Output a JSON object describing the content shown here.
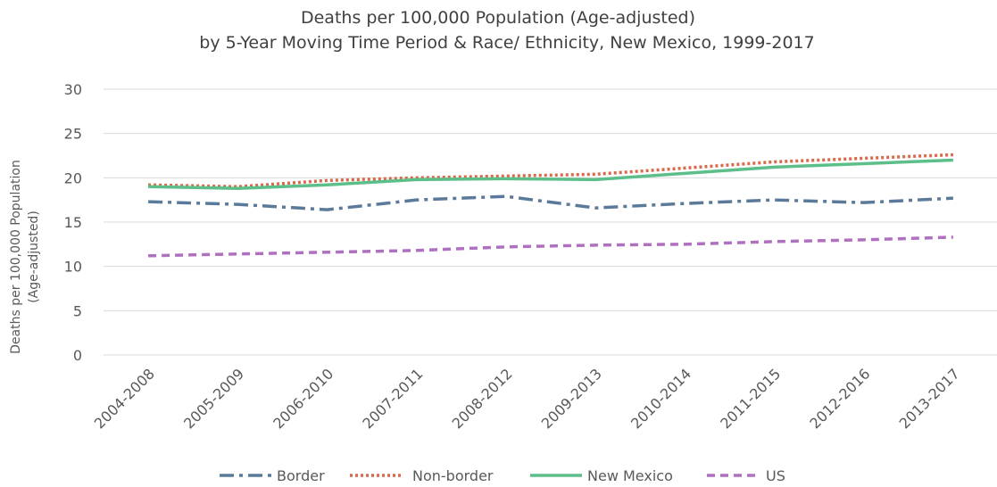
{
  "chart_data": {
    "type": "line",
    "title": "Deaths per 100,000 Population (Age-adjusted)",
    "subtitle": "by 5-Year Moving Time Period & Race/ Ethnicity, New Mexico, 1999-2017",
    "ylabel_line1": "Deaths per 100,000 Population",
    "ylabel_line2": "(Age-adjusted)",
    "xlabel": "",
    "categories": [
      "2004-2008",
      "2005-2009",
      "2006-2010",
      "2007-2011",
      "2008-2012",
      "2009-2013",
      "2010-2014",
      "2011-2015",
      "2012-2016",
      "2013-2017"
    ],
    "ylim": [
      0,
      30
    ],
    "yticks": [
      0,
      5,
      10,
      15,
      20,
      25,
      30
    ],
    "grid": true,
    "legend_position": "bottom",
    "series": [
      {
        "name": "Border",
        "color": "#5B7A99",
        "dash": "dash-dot",
        "values": [
          17.3,
          17.0,
          16.4,
          17.5,
          17.9,
          16.6,
          17.1,
          17.5,
          17.2,
          17.7
        ]
      },
      {
        "name": "Non-border",
        "color": "#D9694A",
        "dash": "dot",
        "values": [
          19.2,
          19.0,
          19.7,
          20.0,
          20.2,
          20.4,
          21.1,
          21.8,
          22.2,
          22.6
        ]
      },
      {
        "name": "New Mexico",
        "color": "#5CBF8A",
        "dash": "solid",
        "values": [
          19.0,
          18.8,
          19.2,
          19.8,
          19.9,
          19.8,
          20.5,
          21.2,
          21.6,
          22.0
        ]
      },
      {
        "name": "US",
        "color": "#B070C0",
        "dash": "dash",
        "values": [
          11.2,
          11.4,
          11.6,
          11.8,
          12.2,
          12.4,
          12.5,
          12.8,
          13.0,
          13.3
        ]
      }
    ]
  }
}
